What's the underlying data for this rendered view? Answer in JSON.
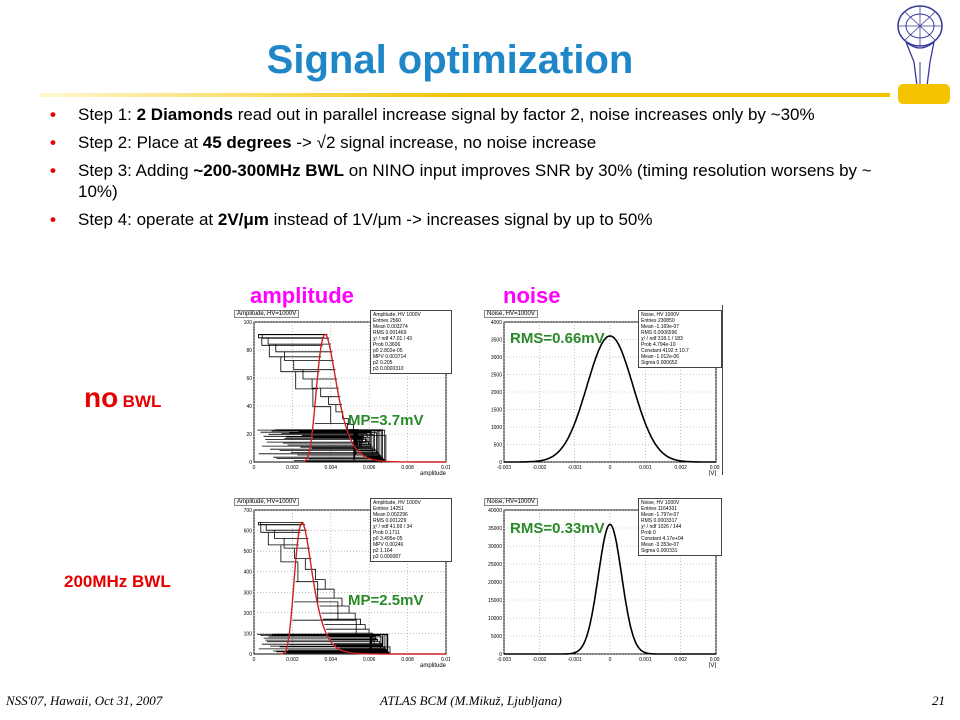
{
  "slide": {
    "title": "Signal optimization",
    "bullets": [
      {
        "pre": "Step 1: ",
        "bold": "2 Diamonds",
        "post": " read out in parallel increase signal by factor 2, noise increases only by ~30%"
      },
      {
        "pre": "Step 2: Place at ",
        "bold": "45 degrees",
        "post": " -> √2 signal increase, no noise increase"
      },
      {
        "pre": "Step 3: Adding ",
        "bold": "~200-300MHz BWL",
        "post": " on NINO input improves SNR by 30% (timing resolution worsens by ~ 10%)"
      },
      {
        "pre": "Step 4: operate at ",
        "bold": "2V/μm",
        "post": " instead of 1V/μm -> increases signal by up to 50%"
      }
    ],
    "col_labels": {
      "amplitude": "amplitude",
      "noise": "noise"
    },
    "row_labels": {
      "no_bwl": "no",
      "no_bwl_suffix": "BWL",
      "bwl": "200MHz BWL"
    },
    "annotations": {
      "mp_top": "MP=3.7mV",
      "rms_top": "RMS=0.66mV",
      "mp_bottom": "MP=2.5mV",
      "rms_bottom": "RMS=0.33mV"
    },
    "footer": {
      "left": "NSS'07, Hawaii, Oct 31, 2007",
      "center": "ATLAS BCM (M.Mikuž, Ljubljana)",
      "page": "21"
    }
  },
  "plots": {
    "amp_top": {
      "title": "Amplitude, HV=1000V",
      "xlabel": "amplitude",
      "xticks": [
        "0",
        "0.002",
        "0.004",
        "0.006",
        "0.008",
        "0.01"
      ],
      "yticks": [
        "0",
        "20",
        "40",
        "60",
        "80",
        "100"
      ],
      "stats": [
        "Amplitude, HV   1000V",
        "Entries   2560",
        "Mean   0.003274",
        "RMS   0.001469",
        "χ² / ndf   47.01 / 43",
        "Prob   0.3606",
        "p0   2.802e-05",
        "MPV   0.003714",
        "p2   0.205",
        "p3   0.0000310"
      ]
    },
    "noise_top": {
      "title": "Noise, HV=1000V",
      "xlabel": "[V]",
      "xticks": [
        "-0.003",
        "-0.002",
        "-0.001",
        "0",
        "0.001",
        "0.002",
        "0.003"
      ],
      "yticks": [
        "0",
        "500",
        "1000",
        "1500",
        "2000",
        "2500",
        "3000",
        "3500",
        "4000"
      ],
      "stats": [
        "Noise, HV   1000V",
        "Entries   230850",
        "Mean   -1.169e-07",
        "RMS   0.0006596",
        "χ² / ndf   318.1 / 183",
        "Prob   4.794e-10",
        "Constant   4192 ± 10.7",
        "Mean   -1.012e-06",
        "Sigma   0.000652"
      ]
    },
    "amp_bottom": {
      "title": "Amplitude, HV=1000V",
      "xlabel": "amplitude",
      "xticks": [
        "0",
        "0.002",
        "0.004",
        "0.006",
        "0.008",
        "0.01"
      ],
      "yticks": [
        "0",
        "100",
        "200",
        "300",
        "400",
        "500",
        "600",
        "700"
      ],
      "stats": [
        "Amplitude, HV   1000V",
        "Entries   14251",
        "Mean   0.002296",
        "RMS   0.001229",
        "χ² / ndf   41.69 / 34",
        "Prob   0.1711",
        "p0   3.495e-05",
        "MPV   0.00246",
        "p2   1.164",
        "p3   0.000087"
      ]
    },
    "noise_bottom": {
      "title": "Noise, HV=1000V",
      "xlabel": "[V]",
      "xticks": [
        "-0.003",
        "-0.002",
        "-0.001",
        "0",
        "0.001",
        "0.002",
        "0.003"
      ],
      "yticks": [
        "0",
        "5000",
        "10000",
        "15000",
        "20000",
        "25000",
        "30000",
        "35000",
        "40000"
      ],
      "stats": [
        "Noise, HV   1000V",
        "Entries   1164331",
        "Mean   -1.797e-07",
        "RMS   0.0003317",
        "χ² / ndf   1026 / 144",
        "Prob   0",
        "Constant   4.17e+04",
        "Mean   -3.353e-07",
        "Sigma   0.000331"
      ]
    }
  },
  "colors": {
    "title": "#1f86c7",
    "bullet_dot": "#e60000",
    "col_label": "#ff00ff",
    "row_label": "#e60000",
    "annotation": "#2a8a2a",
    "fit": "#d02020"
  }
}
